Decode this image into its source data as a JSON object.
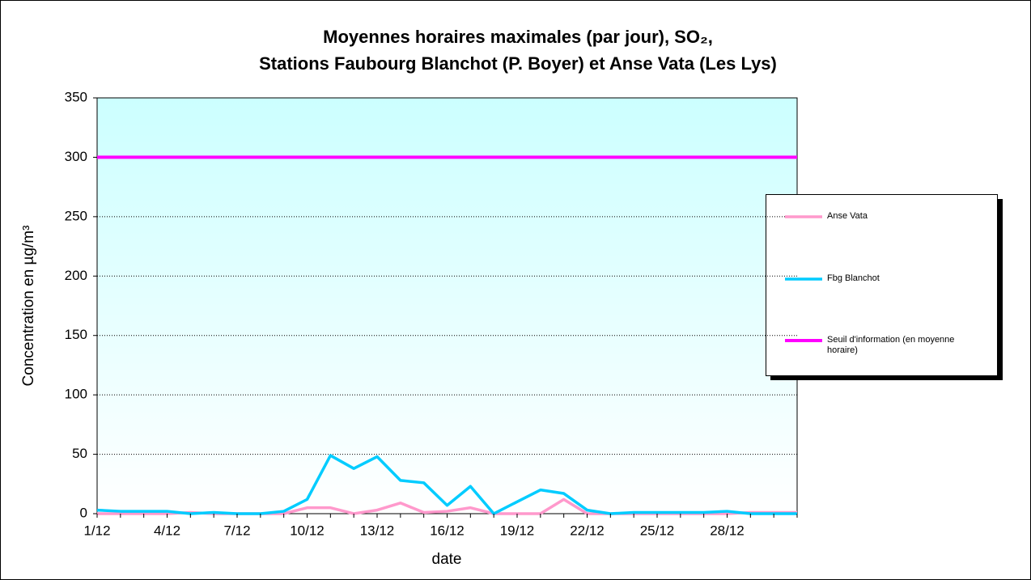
{
  "chart_data": {
    "type": "line",
    "title": [
      "Moyennes horaires maximales (par jour), SO₂,",
      "Stations Faubourg Blanchot (P. Boyer) et Anse Vata (Les Lys)"
    ],
    "x_label": "date",
    "y_label": "Concentration en µg/m³",
    "categories": [
      "1/12",
      null,
      null,
      "4/12",
      null,
      null,
      "7/12",
      null,
      null,
      "10/12",
      null,
      null,
      "13/12",
      null,
      null,
      "16/12",
      null,
      null,
      "19/12",
      null,
      null,
      "22/12",
      null,
      null,
      "25/12",
      null,
      null,
      "28/12",
      null,
      null,
      null
    ],
    "series": [
      {
        "name": "Anse Vata",
        "color": "#ff99cc",
        "values": [
          0,
          0,
          0,
          0,
          1,
          0,
          0,
          0,
          0,
          5,
          5,
          0,
          3,
          9,
          1,
          2,
          5,
          0,
          0,
          0,
          12,
          0,
          0,
          0,
          0,
          0,
          0,
          0,
          1,
          1,
          1
        ]
      },
      {
        "name": "Fbg Blanchot",
        "color": "#00ccff",
        "values": [
          3,
          2,
          2,
          2,
          0,
          1,
          0,
          0,
          2,
          12,
          49,
          38,
          48,
          28,
          26,
          7,
          23,
          0,
          10,
          20,
          17,
          3,
          0,
          1,
          1,
          1,
          1,
          2,
          0,
          0,
          0
        ]
      },
      {
        "name": "Seuil d'information (en moyenne horaire)",
        "color": "#ff00ff",
        "values": [
          300,
          300,
          300,
          300,
          300,
          300,
          300,
          300,
          300,
          300,
          300,
          300,
          300,
          300,
          300,
          300,
          300,
          300,
          300,
          300,
          300,
          300,
          300,
          300,
          300,
          300,
          300,
          300,
          300,
          300,
          300
        ]
      }
    ],
    "ylim": [
      0,
      350
    ],
    "yticks": [
      0,
      50,
      100,
      150,
      200,
      250,
      300,
      350
    ],
    "grid": true,
    "legend": "right"
  }
}
